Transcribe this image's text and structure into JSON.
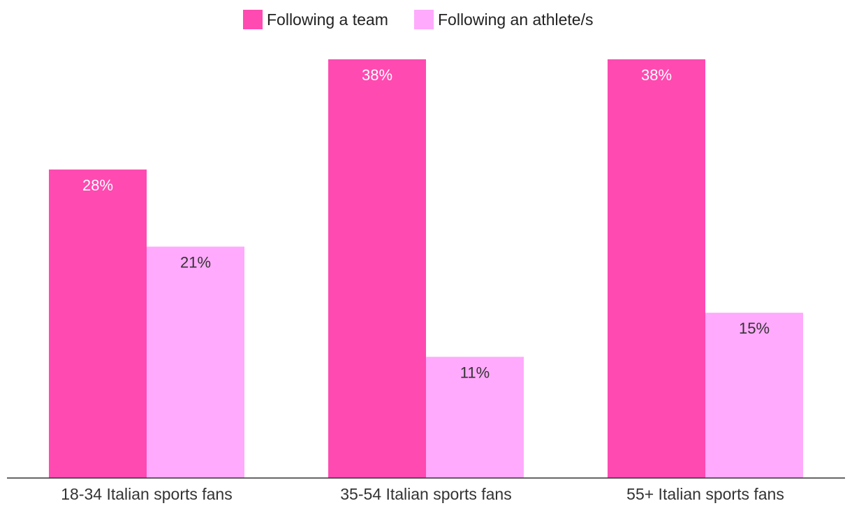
{
  "chart_data": {
    "type": "bar",
    "categories": [
      "18-34 Italian sports fans",
      "35-54 Italian sports fans",
      "55+ Italian sports fans"
    ],
    "series": [
      {
        "name": "Following a team",
        "values": [
          28,
          38,
          38
        ],
        "labels": [
          "28%",
          "38%",
          "38%"
        ],
        "color": "#ff4ab1"
      },
      {
        "name": "Following an athlete/s",
        "values": [
          21,
          11,
          15
        ],
        "labels": [
          "21%",
          "11%",
          "15%"
        ],
        "color": "#ffaafc"
      }
    ],
    "ylim": [
      0,
      38
    ],
    "unit": "%",
    "grid": false,
    "legend_position": "top-center",
    "title": "",
    "xlabel": "",
    "ylabel": ""
  },
  "colors": {
    "axis_line": "#333333",
    "label_on_dark": "#ffffff",
    "label_on_light": "#333333"
  }
}
